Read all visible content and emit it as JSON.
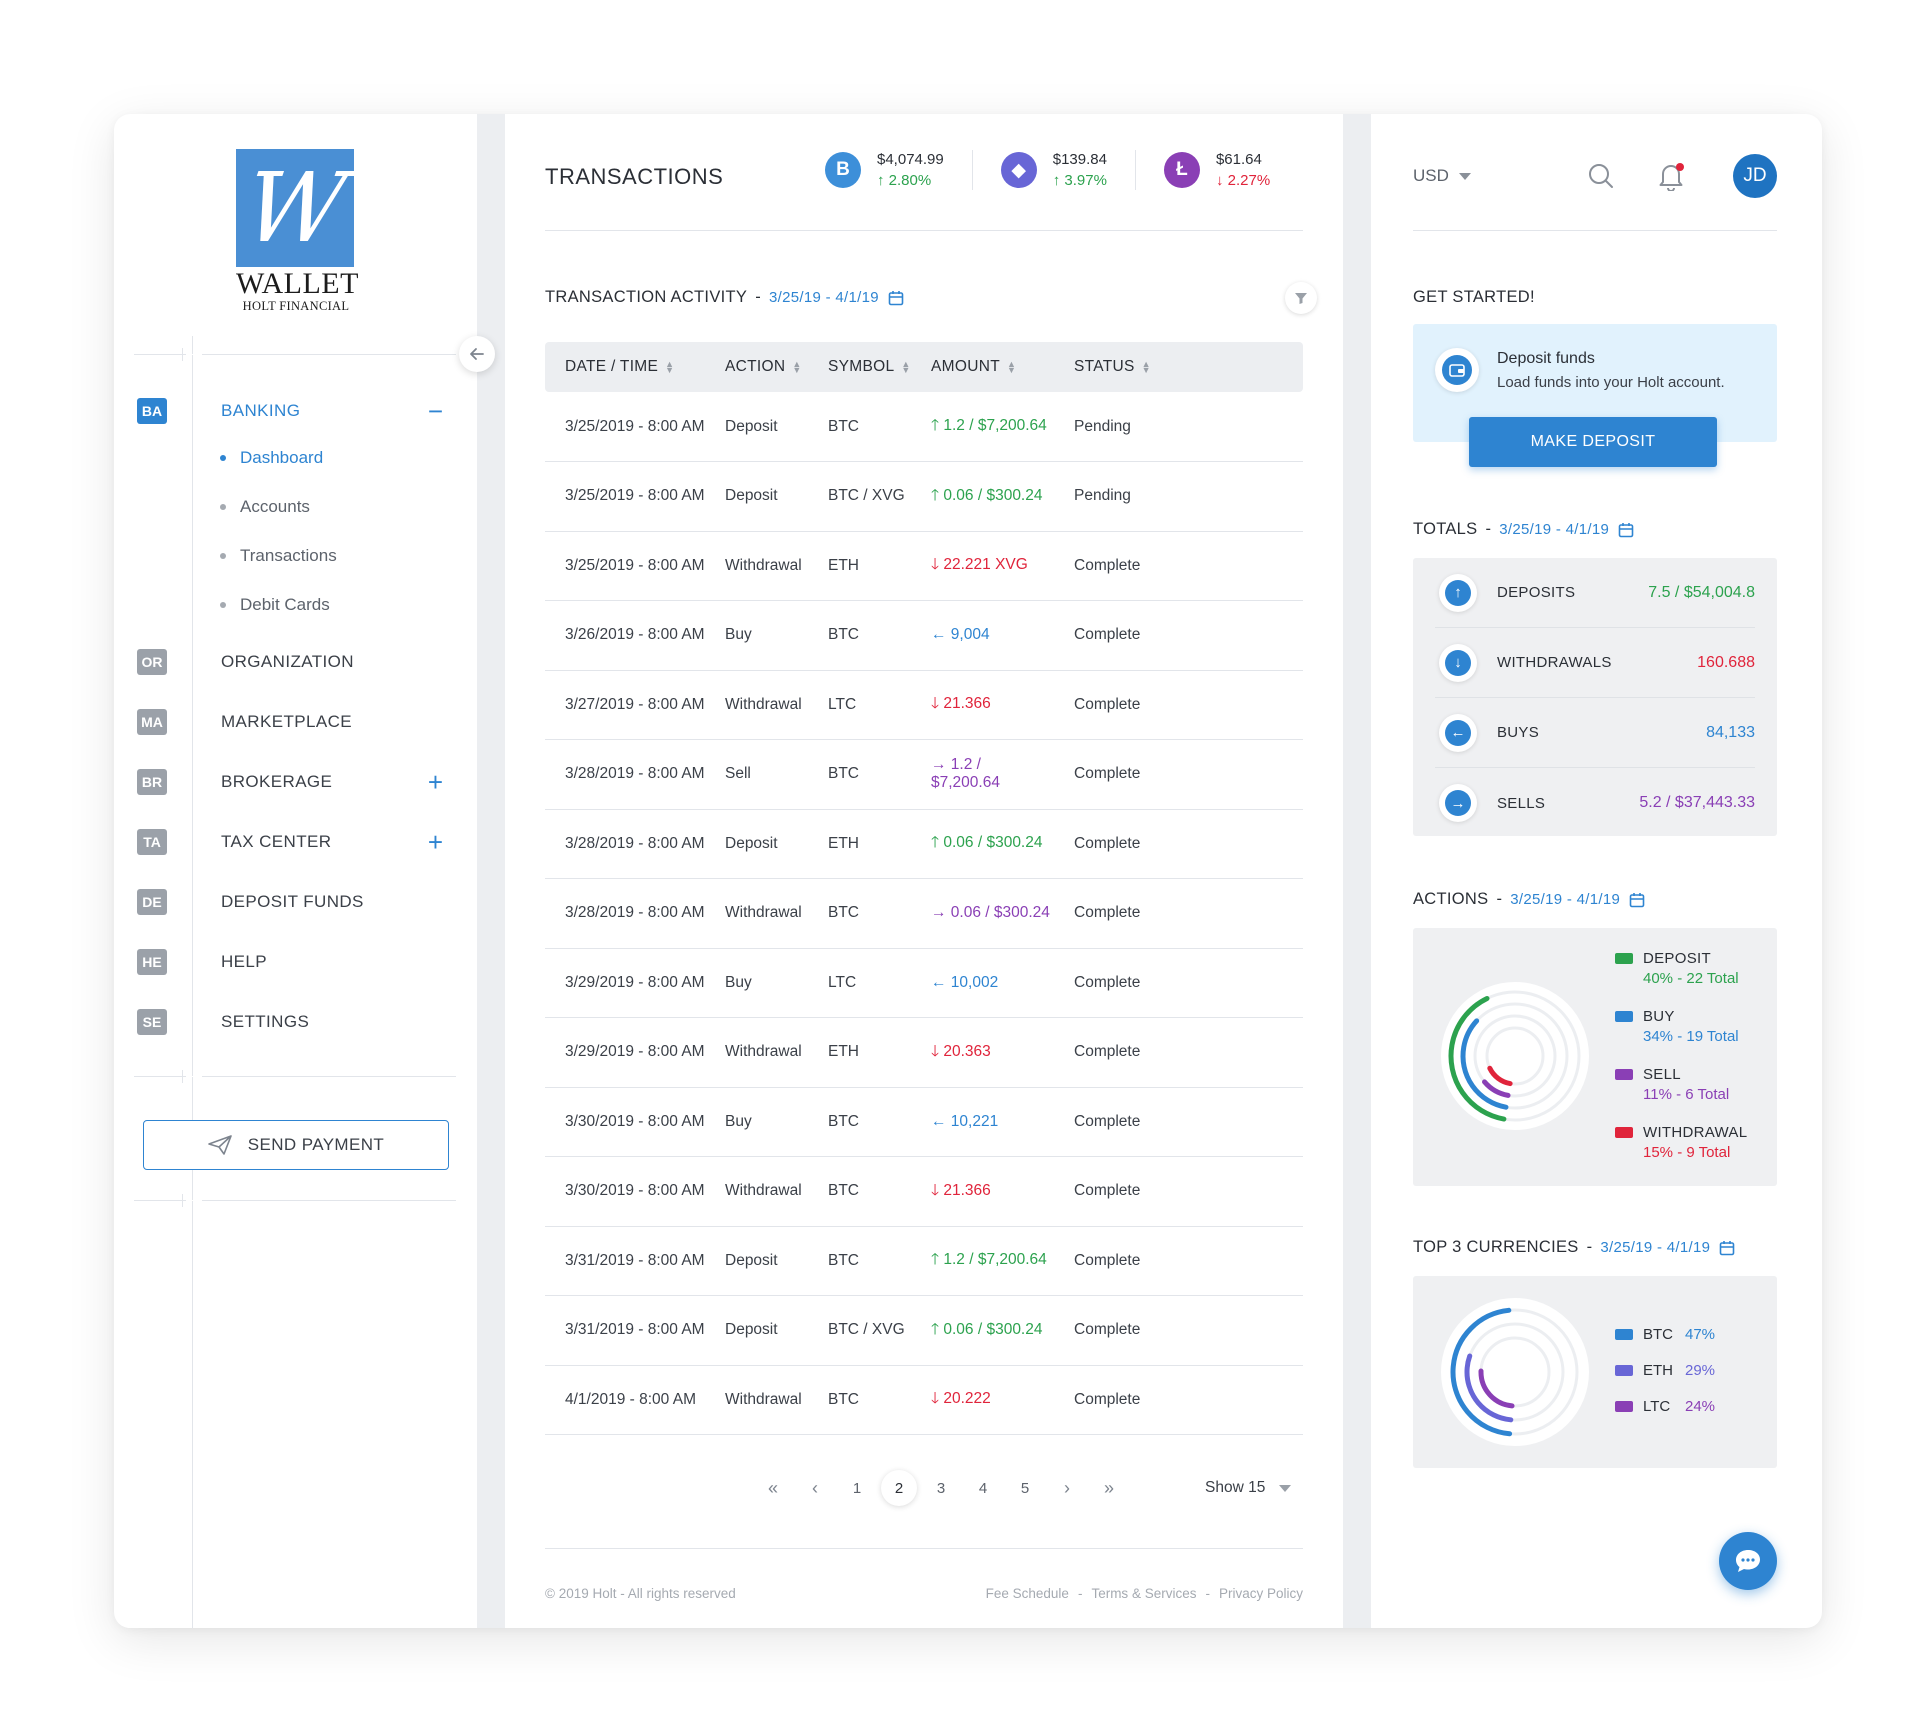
{
  "logo": {
    "mark": "W",
    "word": "WALLET",
    "sub": "HOLT FINANCIAL"
  },
  "sidebar": {
    "items": [
      {
        "badge": "BA",
        "label": "BANKING",
        "action": "−",
        "active": true
      },
      {
        "badge": "OR",
        "label": "ORGANIZATION",
        "action": ""
      },
      {
        "badge": "MA",
        "label": "MARKETPLACE",
        "action": ""
      },
      {
        "badge": "BR",
        "label": "BROKERAGE",
        "action": "+"
      },
      {
        "badge": "TA",
        "label": "TAX CENTER",
        "action": "+"
      },
      {
        "badge": "DE",
        "label": "DEPOSIT FUNDS",
        "action": ""
      },
      {
        "badge": "HE",
        "label": "HELP",
        "action": ""
      },
      {
        "badge": "SE",
        "label": "SETTINGS",
        "action": ""
      }
    ],
    "sub_items": [
      "Dashboard",
      "Accounts",
      "Transactions",
      "Debit Cards"
    ],
    "send_payment": "SEND PAYMENT"
  },
  "header": {
    "title": "TRANSACTIONS",
    "tickers": [
      {
        "symbol": "B",
        "price": "$4,074.99",
        "change": "↑ 2.80%",
        "direction": "up",
        "color": "#3d8fd9"
      },
      {
        "symbol": "◆",
        "price": "$139.84",
        "change": "↑ 3.97%",
        "direction": "up",
        "color": "#6866d6"
      },
      {
        "symbol": "Ł",
        "price": "$61.64",
        "change": "↓ 2.27%",
        "direction": "down",
        "color": "#8a3fb5"
      }
    ]
  },
  "activity": {
    "title": "TRANSACTION ACTIVITY",
    "sep": "-",
    "range": "3/25/19 - 4/1/19",
    "columns": [
      "DATE / TIME",
      "ACTION",
      "SYMBOL",
      "AMOUNT",
      "STATUS"
    ],
    "rows": [
      {
        "date": "3/25/2019 - 8:00 AM",
        "action": "Deposit",
        "symbol": "BTC",
        "amount": "🡑 1.2 / $7,200.64",
        "kind": "up",
        "status": "Pending"
      },
      {
        "date": "3/25/2019 - 8:00 AM",
        "action": "Deposit",
        "symbol": "BTC / XVG",
        "amount": "🡑 0.06 / $300.24",
        "kind": "up",
        "status": "Pending"
      },
      {
        "date": "3/25/2019 - 8:00 AM",
        "action": "Withdrawal",
        "symbol": "ETH",
        "amount": "🡓 22.221  XVG",
        "kind": "down",
        "status": "Complete"
      },
      {
        "date": "3/26/2019 - 8:00 AM",
        "action": "Buy",
        "symbol": "BTC",
        "amount": "← 9,004",
        "kind": "buy",
        "status": "Complete"
      },
      {
        "date": "3/27/2019 - 8:00 AM",
        "action": "Withdrawal",
        "symbol": "LTC",
        "amount": "🡓 21.366",
        "kind": "down",
        "status": "Complete"
      },
      {
        "date": "3/28/2019 - 8:00 AM",
        "action": "Sell",
        "symbol": "BTC",
        "amount": "→ 1.2 / $7,200.64",
        "kind": "sell",
        "status": "Complete"
      },
      {
        "date": "3/28/2019 - 8:00 AM",
        "action": "Deposit",
        "symbol": "ETH",
        "amount": "🡑 0.06 / $300.24",
        "kind": "up",
        "status": "Complete"
      },
      {
        "date": "3/28/2019 - 8:00 AM",
        "action": "Withdrawal",
        "symbol": "BTC",
        "amount": "→ 0.06 / $300.24",
        "kind": "sell",
        "status": "Complete"
      },
      {
        "date": "3/29/2019 - 8:00 AM",
        "action": "Buy",
        "symbol": "LTC",
        "amount": "← 10,002",
        "kind": "buy",
        "status": "Complete"
      },
      {
        "date": "3/29/2019 - 8:00 AM",
        "action": "Withdrawal",
        "symbol": "ETH",
        "amount": "🡓 20.363",
        "kind": "down",
        "status": "Complete"
      },
      {
        "date": "3/30/2019 - 8:00 AM",
        "action": "Buy",
        "symbol": "BTC",
        "amount": "← 10,221",
        "kind": "buy",
        "status": "Complete"
      },
      {
        "date": "3/30/2019 - 8:00 AM",
        "action": "Withdrawal",
        "symbol": "BTC",
        "amount": "🡓 21.366",
        "kind": "down",
        "status": "Complete"
      },
      {
        "date": "3/31/2019 - 8:00 AM",
        "action": "Deposit",
        "symbol": "BTC",
        "amount": "🡑 1.2 / $7,200.64",
        "kind": "up",
        "status": "Complete"
      },
      {
        "date": "3/31/2019 - 8:00 AM",
        "action": "Deposit",
        "symbol": "BTC / XVG",
        "amount": "🡑 0.06 / $300.24",
        "kind": "up",
        "status": "Complete"
      },
      {
        "date": "4/1/2019 - 8:00 AM",
        "action": "Withdrawal",
        "symbol": "BTC",
        "amount": "🡓 20.222",
        "kind": "down",
        "status": "Complete"
      }
    ]
  },
  "pagination": {
    "pages": [
      "1",
      "2",
      "3",
      "4",
      "5"
    ],
    "current": "2",
    "show": "Show 15"
  },
  "footer": {
    "copyright": "© 2019 Holt - All rights reserved",
    "links": [
      "Fee Schedule",
      "Terms & Services",
      "Privacy Policy"
    ],
    "sep": "-"
  },
  "right": {
    "currency": "USD",
    "avatar": "JD",
    "get_started": {
      "title": "GET STARTED!",
      "card_title": "Deposit funds",
      "card_sub": "Load funds into your Holt account.",
      "button": "MAKE DEPOSIT"
    },
    "totals": {
      "title": "TOTALS",
      "sep": "-",
      "range": "3/25/19 - 4/1/19",
      "rows": [
        {
          "label": "DEPOSITS",
          "value": "7.5 / $54,004.8",
          "arrow": "↑",
          "color": "#2ca24e"
        },
        {
          "label": "WITHDRAWALS",
          "value": "160.688",
          "arrow": "↓",
          "color": "#e0243b"
        },
        {
          "label": "BUYS",
          "value": "84,133",
          "arrow": "←",
          "color": "#2e84d1"
        },
        {
          "label": "SELLS",
          "value": "5.2 / $37,443.33",
          "arrow": "→",
          "color": "#8a3fb5"
        }
      ]
    },
    "actions": {
      "title": "ACTIONS",
      "sep": "-",
      "range": "3/25/19 - 4/1/19",
      "legend": [
        {
          "name": "DEPOSIT",
          "detail": "40% - 22 Total",
          "value": 40,
          "color": "#2ca24e"
        },
        {
          "name": "BUY",
          "detail": "34% - 19 Total",
          "value": 34,
          "color": "#2e84d1"
        },
        {
          "name": "SELL",
          "detail": "11% - 6 Total",
          "value": 11,
          "color": "#8a3fb5"
        },
        {
          "name": "WITHDRAWAL",
          "detail": "15% - 9 Total",
          "value": 15,
          "color": "#e0243b"
        }
      ]
    },
    "currencies": {
      "title": "TOP 3 CURRENCIES",
      "sep": "-",
      "range": "3/25/19 - 4/1/19",
      "legend": [
        {
          "name": "BTC",
          "pct": "47%",
          "value": 47,
          "color": "#2e84d1"
        },
        {
          "name": "ETH",
          "pct": "29%",
          "value": 29,
          "color": "#6866d6"
        },
        {
          "name": "LTC",
          "pct": "24%",
          "value": 24,
          "color": "#8a3fb5"
        }
      ]
    }
  }
}
